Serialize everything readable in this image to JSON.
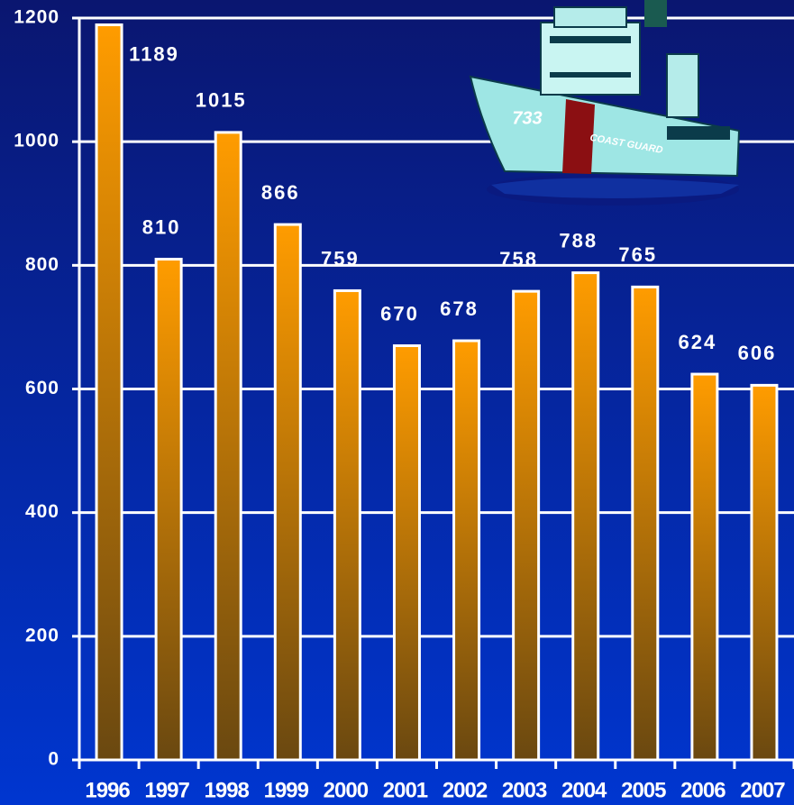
{
  "chart_data": {
    "type": "bar",
    "categories": [
      "1996",
      "1997",
      "1998",
      "1999",
      "2000",
      "2001",
      "2002",
      "2003",
      "2004",
      "2005",
      "2006",
      "2007"
    ],
    "values": [
      1189,
      810,
      1015,
      866,
      759,
      670,
      678,
      758,
      788,
      765,
      624,
      606
    ],
    "color": "#ff9a00",
    "ylim": [
      0,
      1200
    ],
    "yticks": [
      0,
      200,
      400,
      600,
      800,
      1000,
      1200
    ],
    "grid": true,
    "annotations": [
      "733",
      "COAST GUARD"
    ]
  }
}
